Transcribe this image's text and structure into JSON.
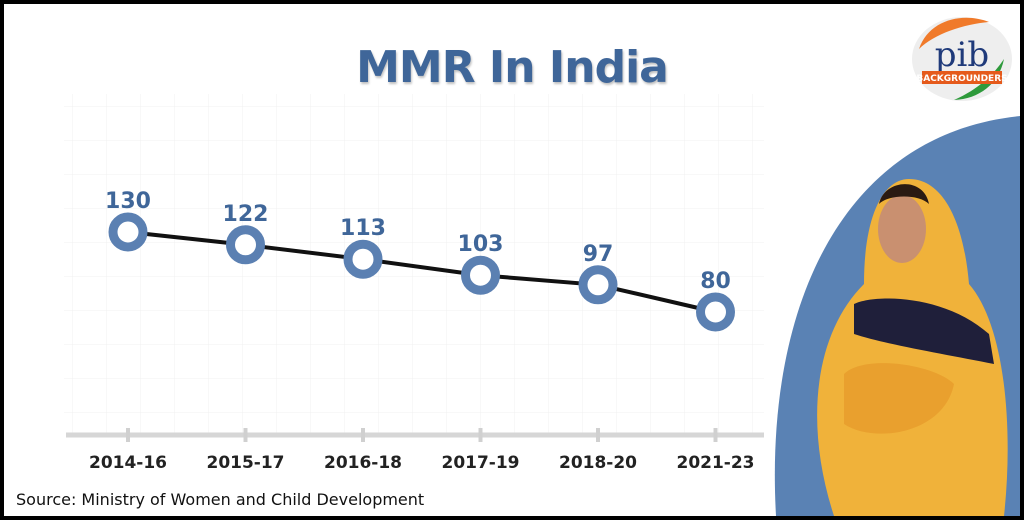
{
  "logo": {
    "text": "pib",
    "subtext": "BACKGROUNDERS"
  },
  "source": "Source: Ministry of Women and Child Development",
  "colors": {
    "title": "#3f6699",
    "marker": "#5b80b2",
    "line": "#111111",
    "axis": "#d6d6d6",
    "background_shape": "#5a82b4"
  },
  "chart_data": {
    "type": "line",
    "title": "MMR In India",
    "categories": [
      "2014-16",
      "2015-17",
      "2016-18",
      "2017-19",
      "2018-20",
      "2021-23"
    ],
    "values": [
      130,
      122,
      113,
      103,
      97,
      80
    ],
    "data_labels": [
      "130",
      "122",
      "113",
      "103",
      "97",
      "80"
    ],
    "xlabel": "",
    "ylabel": "",
    "grid": true,
    "legend": "none"
  }
}
